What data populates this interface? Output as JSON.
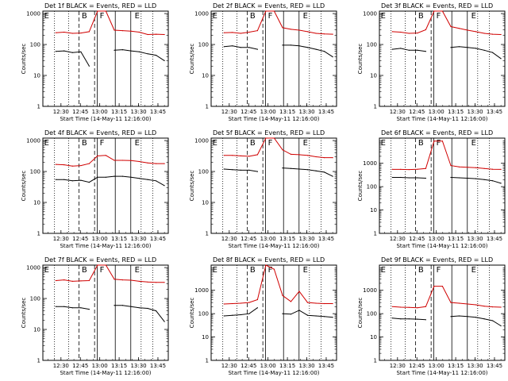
{
  "chart_data": [
    {
      "type": "line",
      "title": "Det 1f BLACK = Events, RED = LLD",
      "xlabel": "Start Time (14-May-11 12:16:00)",
      "ylabel": "Counts/sec",
      "x_ticks": [
        "12:30",
        "12:45",
        "13:00",
        "13:15",
        "13:30",
        "13:45"
      ],
      "y_ticks": [
        "1",
        "10",
        "100",
        "1000"
      ],
      "y_scale": "log",
      "ylim": [
        1,
        1200
      ],
      "xlim": [
        "12:16",
        "13:53"
      ],
      "markers": [
        "E",
        "B",
        "F",
        "E"
      ],
      "series": [
        {
          "color": "#d00000",
          "values": [
            240,
            250,
            230,
            235,
            260,
            1500,
            1500,
            290,
            280,
            270,
            250,
            210,
            215,
            210
          ]
        },
        {
          "color": "#000000",
          "values": [
            60,
            62,
            55,
            58,
            20,
            null,
            null,
            65,
            68,
            62,
            58,
            50,
            45,
            30
          ]
        }
      ]
    },
    {
      "type": "line",
      "title": "Det 2f BLACK = Events, RED = LLD",
      "xlabel": "Start Time (14-May-11 12:16:00)",
      "ylabel": "Counts/sec",
      "x_ticks": [
        "12:30",
        "12:45",
        "13:00",
        "13:15",
        "13:30",
        "13:45"
      ],
      "y_ticks": [
        "1",
        "10",
        "100",
        "1000"
      ],
      "y_scale": "log",
      "ylim": [
        1,
        1200
      ],
      "xlim": [
        "12:16",
        "13:53"
      ],
      "markers": [
        "E",
        "B",
        "F",
        "E"
      ],
      "series": [
        {
          "color": "#d00000",
          "values": [
            240,
            245,
            230,
            250,
            280,
            1500,
            1500,
            350,
            310,
            290,
            260,
            230,
            220,
            215
          ]
        },
        {
          "color": "#000000",
          "values": [
            85,
            90,
            80,
            80,
            70,
            null,
            null,
            95,
            95,
            90,
            80,
            70,
            60,
            40
          ]
        }
      ]
    },
    {
      "type": "line",
      "title": "Det 3f BLACK = Events, RED = LLD",
      "xlabel": "Start Time (14-May-11 12:16:00)",
      "ylabel": "Counts/sec",
      "x_ticks": [
        "12:30",
        "12:45",
        "13:00",
        "13:15",
        "13:30",
        "13:45"
      ],
      "y_ticks": [
        "1",
        "10",
        "100",
        "1000"
      ],
      "y_scale": "log",
      "ylim": [
        1,
        1200
      ],
      "xlim": [
        "12:16",
        "13:53"
      ],
      "markers": [
        "E",
        "B",
        "F",
        "E"
      ],
      "series": [
        {
          "color": "#d00000",
          "values": [
            260,
            250,
            230,
            235,
            300,
            1500,
            1500,
            380,
            330,
            290,
            260,
            230,
            215,
            210
          ]
        },
        {
          "color": "#000000",
          "values": [
            70,
            75,
            65,
            65,
            60,
            null,
            null,
            80,
            85,
            80,
            75,
            65,
            55,
            35
          ]
        }
      ]
    },
    {
      "type": "line",
      "title": "Det 4f BLACK = Events, RED = LLD",
      "xlabel": "Start Time (14-May-11 12:16:00)",
      "ylabel": "Counts/sec",
      "x_ticks": [
        "12:30",
        "12:45",
        "13:00",
        "13:15",
        "13:30",
        "13:45"
      ],
      "y_ticks": [
        "1",
        "10",
        "100",
        "1000"
      ],
      "y_scale": "log",
      "ylim": [
        1,
        1200
      ],
      "xlim": [
        "12:16",
        "13:53"
      ],
      "markers": [
        "E",
        "B",
        "F",
        "E"
      ],
      "series": [
        {
          "color": "#d00000",
          "values": [
            170,
            165,
            150,
            155,
            180,
            320,
            330,
            230,
            230,
            225,
            210,
            190,
            180,
            180
          ]
        },
        {
          "color": "#000000",
          "values": [
            55,
            55,
            50,
            52,
            45,
            65,
            65,
            70,
            70,
            65,
            60,
            55,
            50,
            35
          ]
        }
      ]
    },
    {
      "type": "line",
      "title": "Det 5f BLACK = Events, RED = LLD",
      "xlabel": "Start Time (14-May-11 12:16:00)",
      "ylabel": "Counts/sec",
      "x_ticks": [
        "12:30",
        "12:45",
        "13:00",
        "13:15",
        "13:30",
        "13:45"
      ],
      "y_ticks": [
        "1",
        "10",
        "100",
        "1000"
      ],
      "y_scale": "log",
      "ylim": [
        1,
        1200
      ],
      "xlim": [
        "12:16",
        "13:53"
      ],
      "markers": [
        "E",
        "B",
        "F",
        "E"
      ],
      "series": [
        {
          "color": "#d00000",
          "values": [
            330,
            330,
            320,
            310,
            350,
            2000,
            2000,
            500,
            360,
            350,
            330,
            300,
            280,
            280
          ]
        },
        {
          "color": "#000000",
          "values": [
            120,
            115,
            110,
            110,
            100,
            null,
            null,
            130,
            125,
            120,
            115,
            105,
            95,
            70
          ]
        }
      ]
    },
    {
      "type": "line",
      "title": "Det 6f BLACK = Events, RED = LLD",
      "xlabel": "Start Time (14-May-11 12:16:00)",
      "ylabel": "Counts/sec",
      "x_ticks": [
        "12:30",
        "12:45",
        "13:00",
        "13:15",
        "13:30",
        "13:45"
      ],
      "y_ticks": [
        "1",
        "10",
        "100",
        "1000"
      ],
      "y_scale": "log",
      "ylim": [
        1,
        12000
      ],
      "xlim": [
        "12:16",
        "13:53"
      ],
      "markers": [
        "E",
        "B",
        "F",
        "E"
      ],
      "series": [
        {
          "color": "#d00000",
          "values": [
            550,
            550,
            540,
            560,
            600,
            9000,
            9000,
            800,
            700,
            680,
            650,
            600,
            560,
            550
          ]
        },
        {
          "color": "#000000",
          "values": [
            250,
            250,
            240,
            240,
            230,
            null,
            null,
            250,
            240,
            230,
            220,
            200,
            180,
            140
          ]
        }
      ]
    },
    {
      "type": "line",
      "title": "Det 7f BLACK = Events, RED = LLD",
      "xlabel": "Start Time (14-May-11 12:16:00)",
      "ylabel": "Counts/sec",
      "x_ticks": [
        "12:30",
        "12:45",
        "13:00",
        "13:15",
        "13:30",
        "13:45"
      ],
      "y_ticks": [
        "1",
        "10",
        "100",
        "1000"
      ],
      "y_scale": "log",
      "ylim": [
        1,
        1200
      ],
      "xlim": [
        "12:16",
        "13:53"
      ],
      "markers": [
        "E",
        "B",
        "F",
        "E"
      ],
      "series": [
        {
          "color": "#d00000",
          "values": [
            380,
            400,
            360,
            370,
            380,
            1500,
            1500,
            420,
            400,
            390,
            360,
            340,
            330,
            330
          ]
        },
        {
          "color": "#000000",
          "values": [
            55,
            55,
            50,
            50,
            45,
            null,
            null,
            60,
            60,
            55,
            50,
            48,
            40,
            18
          ]
        }
      ]
    },
    {
      "type": "line",
      "title": "Det 8f BLACK = Events, RED = LLD",
      "xlabel": "Start Time (14-May-11 12:16:00)",
      "ylabel": "Counts/sec",
      "x_ticks": [
        "12:30",
        "12:45",
        "13:00",
        "13:15",
        "13:30",
        "13:45"
      ],
      "y_ticks": [
        "1",
        "10",
        "100",
        "1000"
      ],
      "y_scale": "log",
      "ylim": [
        1,
        12000
      ],
      "xlim": [
        "12:16",
        "13:53"
      ],
      "markers": [
        "E",
        "B",
        "F",
        "E"
      ],
      "series": [
        {
          "color": "#d00000",
          "values": [
            260,
            270,
            280,
            300,
            400,
            12000,
            8000,
            600,
            330,
            900,
            300,
            280,
            270,
            270
          ]
        },
        {
          "color": "#000000",
          "values": [
            80,
            85,
            90,
            100,
            180,
            null,
            null,
            100,
            95,
            140,
            85,
            80,
            75,
            70
          ]
        }
      ]
    },
    {
      "type": "line",
      "title": "Det 9f BLACK = Events, RED = LLD",
      "xlabel": "Start Time (14-May-11 12:16:00)",
      "ylabel": "Counts/sec",
      "x_ticks": [
        "12:30",
        "12:45",
        "13:00",
        "13:15",
        "13:30",
        "13:45"
      ],
      "y_ticks": [
        "1",
        "10",
        "100",
        "1000"
      ],
      "y_scale": "log",
      "ylim": [
        1,
        12000
      ],
      "xlim": [
        "12:16",
        "13:53"
      ],
      "markers": [
        "E",
        "B",
        "F",
        "E"
      ],
      "series": [
        {
          "color": "#d00000",
          "values": [
            200,
            190,
            185,
            180,
            200,
            1500,
            1500,
            300,
            280,
            260,
            240,
            210,
            195,
            190
          ]
        },
        {
          "color": "#000000",
          "values": [
            65,
            60,
            60,
            58,
            55,
            null,
            null,
            75,
            80,
            75,
            70,
            60,
            50,
            30
          ]
        }
      ]
    }
  ]
}
